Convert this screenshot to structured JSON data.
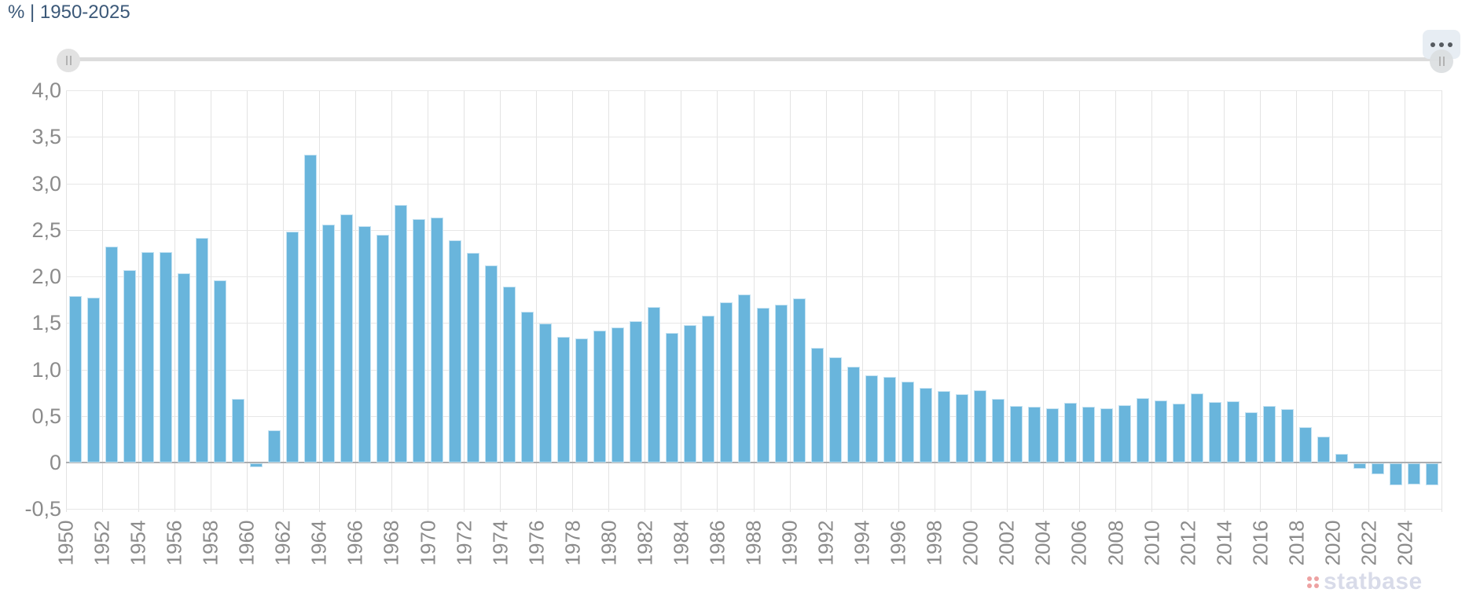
{
  "header": {
    "title": "% | 1950-2025"
  },
  "toolbar": {
    "menu_icon": "ellipsis-icon"
  },
  "range_slider": {
    "left_grip_icon": "drag-handle-icon",
    "right_grip_icon": "drag-handle-icon"
  },
  "chart_data": {
    "type": "bar",
    "title": "% | 1950-2025",
    "unit": "%",
    "categories": [
      1950,
      1951,
      1952,
      1953,
      1954,
      1955,
      1956,
      1957,
      1958,
      1959,
      1960,
      1961,
      1962,
      1963,
      1964,
      1965,
      1966,
      1967,
      1968,
      1969,
      1970,
      1971,
      1972,
      1973,
      1974,
      1975,
      1976,
      1977,
      1978,
      1979,
      1980,
      1981,
      1982,
      1983,
      1984,
      1985,
      1986,
      1987,
      1988,
      1989,
      1990,
      1991,
      1992,
      1993,
      1994,
      1995,
      1996,
      1997,
      1998,
      1999,
      2000,
      2001,
      2002,
      2003,
      2004,
      2005,
      2006,
      2007,
      2008,
      2009,
      2010,
      2011,
      2012,
      2013,
      2014,
      2015,
      2016,
      2017,
      2018,
      2019,
      2020,
      2021,
      2022,
      2023,
      2024,
      2025
    ],
    "values": [
      1.79,
      1.77,
      2.32,
      2.07,
      2.26,
      2.26,
      2.03,
      2.41,
      1.96,
      0.68,
      -0.04,
      0.35,
      2.48,
      3.31,
      2.56,
      2.67,
      2.54,
      2.45,
      2.77,
      2.62,
      2.63,
      2.39,
      2.25,
      2.12,
      1.89,
      1.62,
      1.49,
      1.35,
      1.33,
      1.42,
      1.45,
      1.52,
      1.67,
      1.39,
      1.48,
      1.58,
      1.72,
      1.81,
      1.66,
      1.7,
      1.76,
      1.23,
      1.13,
      1.03,
      0.94,
      0.92,
      0.87,
      0.8,
      0.77,
      0.73,
      0.78,
      0.68,
      0.61,
      0.6,
      0.58,
      0.64,
      0.6,
      0.58,
      0.62,
      0.69,
      0.67,
      0.63,
      0.74,
      0.65,
      0.66,
      0.54,
      0.61,
      0.57,
      0.38,
      0.28,
      0.09,
      -0.06,
      -0.12,
      -0.24,
      -0.23,
      -0.24
    ],
    "ylim": [
      -0.5,
      4.0
    ],
    "ytick_labels": [
      "4,0",
      "3,5",
      "3,0",
      "2,5",
      "2,0",
      "1,5",
      "1,0",
      "0,5",
      "0",
      "-0,5"
    ],
    "xtick_labels": [
      "1950",
      "1952",
      "1954",
      "1956",
      "1958",
      "1960",
      "1962",
      "1964",
      "1966",
      "1968",
      "1970",
      "1972",
      "1974",
      "1976",
      "1978",
      "1980",
      "1982",
      "1984",
      "1986",
      "1988",
      "1990",
      "1992",
      "1994",
      "1996",
      "1998",
      "2000",
      "2002",
      "2004",
      "2006",
      "2008",
      "2010",
      "2012",
      "2014",
      "2016",
      "2018",
      "2020",
      "2022",
      "2024"
    ],
    "xlabel": "",
    "ylabel": "",
    "grid": true,
    "legend": false,
    "decimal_separator": ",",
    "bar_color": "#69b5dc",
    "zero_line_color": "#abaeb1",
    "title_color": "#3b5878"
  },
  "watermark": {
    "text": "statbase",
    "icon": "dots-grid-icon",
    "icon_color": "#eda2a2",
    "text_color": "#d8dbe9"
  }
}
